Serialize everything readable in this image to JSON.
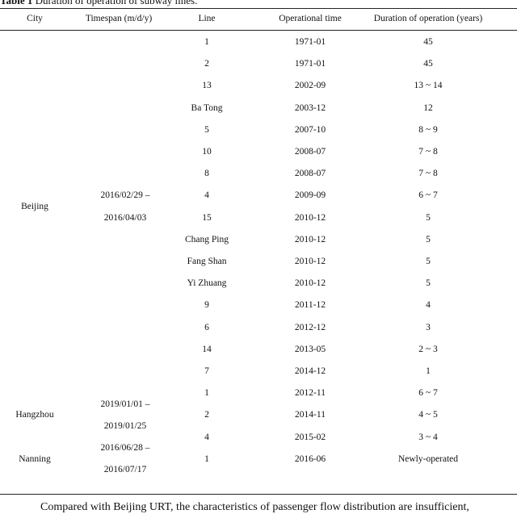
{
  "table": {
    "caption_label": "Table 1",
    "caption_text": "Duration of operation of subway lines.",
    "headers": [
      "City",
      "Timespan (m/d/y)",
      "Line",
      "Operational time",
      "Duration of operation (years)"
    ],
    "groups": [
      {
        "city": "Beijing",
        "timespan_start": "2016/02/29 –",
        "timespan_end": "2016/04/03",
        "rows": [
          {
            "line": "1",
            "time": "1971-01",
            "duration": "45"
          },
          {
            "line": "2",
            "time": "1971-01",
            "duration": "45"
          },
          {
            "line": "13",
            "time": "2002-09",
            "duration": "13 ~ 14"
          },
          {
            "line": "Ba Tong",
            "time": "2003-12",
            "duration": "12"
          },
          {
            "line": "5",
            "time": "2007-10",
            "duration": "8 ~ 9"
          },
          {
            "line": "10",
            "time": "2008-07",
            "duration": "7 ~ 8"
          },
          {
            "line": "8",
            "time": "2008-07",
            "duration": "7 ~ 8"
          },
          {
            "line": "4",
            "time": "2009-09",
            "duration": "6 ~ 7"
          },
          {
            "line": "15",
            "time": "2010-12",
            "duration": "5"
          },
          {
            "line": "Chang Ping",
            "time": "2010-12",
            "duration": "5"
          },
          {
            "line": "Fang Shan",
            "time": "2010-12",
            "duration": "5"
          },
          {
            "line": "Yi Zhuang",
            "time": "2010-12",
            "duration": "5"
          },
          {
            "line": "9",
            "time": "2011-12",
            "duration": "4"
          },
          {
            "line": "6",
            "time": "2012-12",
            "duration": "3"
          },
          {
            "line": "14",
            "time": "2013-05",
            "duration": "2 ~ 3"
          },
          {
            "line": "7",
            "time": "2014-12",
            "duration": "1"
          }
        ]
      },
      {
        "city": "Hangzhou",
        "timespan_start": "2019/01/01 –",
        "timespan_end": "2019/01/25",
        "rows": [
          {
            "line": "1",
            "time": "2012-11",
            "duration": "6 ~ 7"
          },
          {
            "line": "2",
            "time": "2014-11",
            "duration": "4 ~ 5"
          },
          {
            "line": "4",
            "time": "2015-02",
            "duration": "3 ~ 4"
          }
        ]
      },
      {
        "city": "Nanning",
        "timespan_start": "2016/06/28 –",
        "timespan_end": "2016/07/17",
        "rows": [
          {
            "line": "1",
            "time": "2016-06",
            "duration": "Newly-operated"
          }
        ]
      }
    ]
  },
  "paragraph": {
    "text": "Compared with Beijing URT, the characteristics of passenger flow distribution are insufficient,"
  }
}
